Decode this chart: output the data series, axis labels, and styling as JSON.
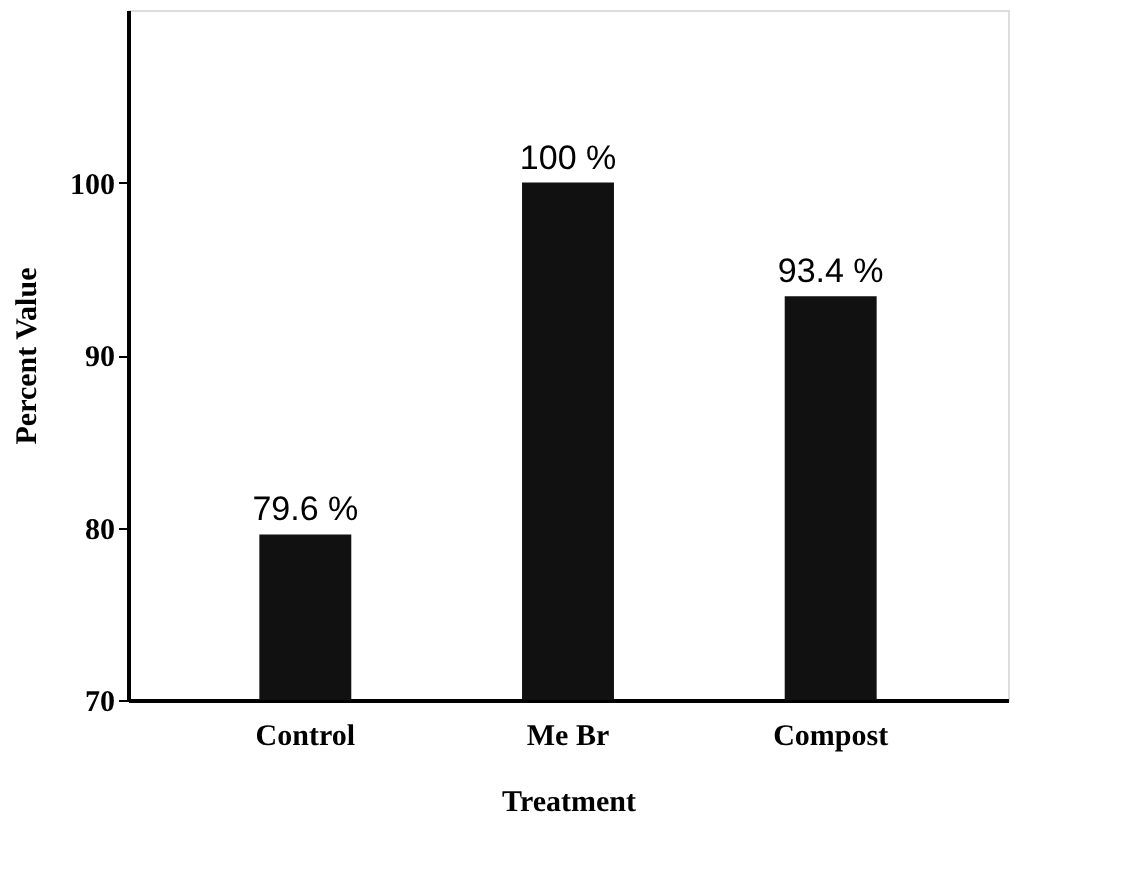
{
  "chart_data": {
    "type": "bar",
    "xlabel": "Treatment",
    "ylabel": "Percent Value",
    "categories": [
      "Control",
      "Me Br",
      "Compost"
    ],
    "values": [
      79.6,
      100,
      93.4
    ],
    "value_labels": [
      "79.6 %",
      "100 %",
      "93.4 %"
    ],
    "color": "#111111",
    "ylim": [
      70,
      110
    ],
    "yticks": [
      70,
      80,
      90,
      100
    ],
    "grid": false
  }
}
